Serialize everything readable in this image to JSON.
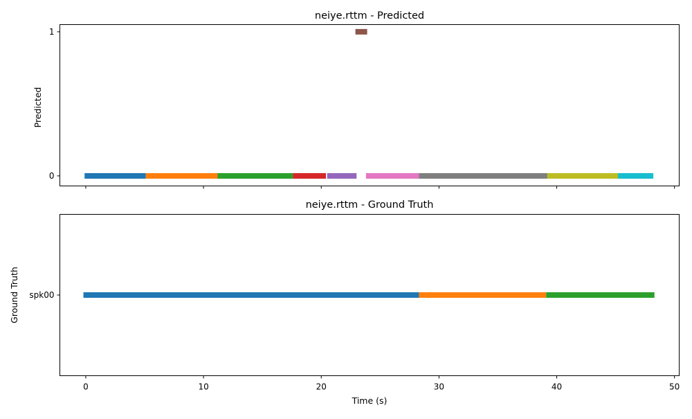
{
  "chart_data": [
    {
      "type": "timeline",
      "title": "neiye.rttm - Predicted",
      "ylabel": "Predicted",
      "xlabel": "",
      "xlim": [
        -2.2,
        50.4
      ],
      "ylim": [
        -0.07,
        1.05
      ],
      "xticks": [
        0,
        10,
        20,
        30,
        40,
        50
      ],
      "show_xtick_labels": false,
      "yticks": [
        {
          "value": 0,
          "label": "0"
        },
        {
          "value": 1,
          "label": "1"
        }
      ],
      "segments": [
        {
          "row": 0,
          "start": -0.1,
          "end": 5.1,
          "color": "#1f77b4"
        },
        {
          "row": 0,
          "start": 5.1,
          "end": 11.2,
          "color": "#ff7f0e"
        },
        {
          "row": 0,
          "start": 11.2,
          "end": 17.6,
          "color": "#2ca02c"
        },
        {
          "row": 0,
          "start": 17.6,
          "end": 20.4,
          "color": "#d62728"
        },
        {
          "row": 0,
          "start": 20.5,
          "end": 23.0,
          "color": "#9467bd"
        },
        {
          "row": 1,
          "start": 22.9,
          "end": 23.9,
          "color": "#8c564b"
        },
        {
          "row": 0,
          "start": 23.8,
          "end": 28.3,
          "color": "#e377c2"
        },
        {
          "row": 0,
          "start": 28.3,
          "end": 39.2,
          "color": "#7f7f7f"
        },
        {
          "row": 0,
          "start": 39.2,
          "end": 45.2,
          "color": "#bcbd22"
        },
        {
          "row": 0,
          "start": 45.2,
          "end": 48.2,
          "color": "#17becf"
        }
      ]
    },
    {
      "type": "timeline",
      "title": "neiye.rttm - Ground Truth",
      "ylabel": "Ground Truth",
      "xlabel": "Time (s)",
      "xlim": [
        -2.2,
        50.4
      ],
      "ylim": [
        -1,
        1
      ],
      "xticks": [
        0,
        10,
        20,
        30,
        40,
        50
      ],
      "show_xtick_labels": true,
      "yticks": [
        {
          "value": 0,
          "label": "spk00"
        }
      ],
      "segments": [
        {
          "row": 0,
          "start": -0.2,
          "end": 28.3,
          "color": "#1f77b4"
        },
        {
          "row": 0,
          "start": 28.3,
          "end": 39.1,
          "color": "#ff7f0e"
        },
        {
          "row": 0,
          "start": 39.1,
          "end": 48.3,
          "color": "#2ca02c"
        }
      ]
    }
  ]
}
